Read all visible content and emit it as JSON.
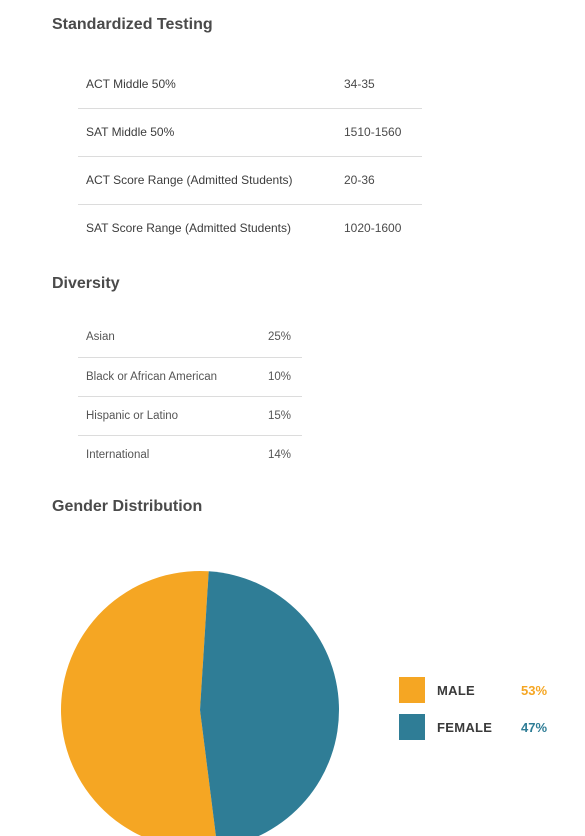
{
  "testing": {
    "title": "Standardized Testing",
    "rows": [
      {
        "label": "ACT Middle 50%",
        "value": "34-35"
      },
      {
        "label": "SAT Middle 50%",
        "value": "1510-1560"
      },
      {
        "label": "ACT Score Range (Admitted Students)",
        "value": "20-36"
      },
      {
        "label": "SAT Score Range (Admitted Students)",
        "value": "1020-1600"
      }
    ]
  },
  "diversity": {
    "title": "Diversity",
    "rows": [
      {
        "label": "Asian",
        "value": "25%"
      },
      {
        "label": "Black or African American",
        "value": "10%"
      },
      {
        "label": "Hispanic or Latino",
        "value": "15%"
      },
      {
        "label": "International",
        "value": "14%"
      }
    ]
  },
  "gender": {
    "title": "Gender Distribution"
  },
  "chart_data": {
    "type": "pie",
    "categories": [
      "MALE",
      "FEMALE"
    ],
    "values": [
      53,
      47
    ],
    "value_labels": [
      "53%",
      "47%"
    ],
    "colors": [
      "#f5a623",
      "#2f7d96"
    ],
    "legend": "right"
  }
}
